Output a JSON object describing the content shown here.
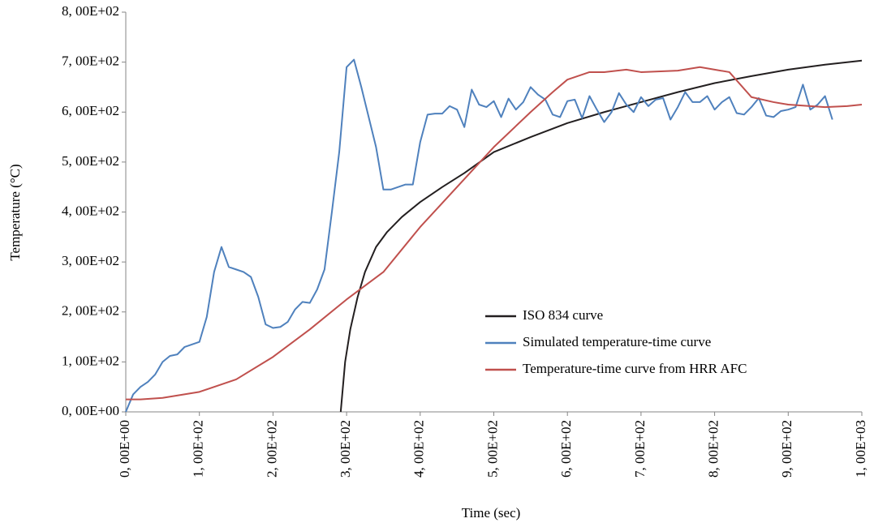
{
  "chart_data": {
    "type": "line",
    "xlabel": "Time (sec)",
    "ylabel": "Temperature (°C)",
    "xlim": [
      0,
      1000
    ],
    "ylim": [
      0,
      800
    ],
    "xticks": [
      {
        "value": 0,
        "label": "0, 00E+00"
      },
      {
        "value": 100,
        "label": "1, 00E+02"
      },
      {
        "value": 200,
        "label": "2, 00E+02"
      },
      {
        "value": 300,
        "label": "3, 00E+02"
      },
      {
        "value": 400,
        "label": "4, 00E+02"
      },
      {
        "value": 500,
        "label": "5, 00E+02"
      },
      {
        "value": 600,
        "label": "6, 00E+02"
      },
      {
        "value": 700,
        "label": "7, 00E+02"
      },
      {
        "value": 800,
        "label": "8, 00E+02"
      },
      {
        "value": 900,
        "label": "9, 00E+02"
      },
      {
        "value": 1000,
        "label": "1, 00E+03"
      }
    ],
    "yticks": [
      {
        "value": 0,
        "label": "0, 00E+00"
      },
      {
        "value": 100,
        "label": "1, 00E+02"
      },
      {
        "value": 200,
        "label": "2, 00E+02"
      },
      {
        "value": 300,
        "label": "3, 00E+02"
      },
      {
        "value": 400,
        "label": "4, 00E+02"
      },
      {
        "value": 500,
        "label": "5, 00E+02"
      },
      {
        "value": 600,
        "label": "6, 00E+02"
      },
      {
        "value": 700,
        "label": "7, 00E+02"
      },
      {
        "value": 800,
        "label": "8, 00E+02"
      }
    ],
    "grid": false,
    "legend": "center right",
    "series": [
      {
        "name": "ISO 834 curve",
        "color": "#231f20",
        "x": [
          292,
          298,
          305,
          315,
          325,
          340,
          355,
          375,
          400,
          430,
          460,
          500,
          550,
          600,
          650,
          700,
          750,
          800,
          850,
          900,
          950,
          1000
        ],
        "values": [
          0,
          100,
          165,
          230,
          280,
          330,
          360,
          390,
          420,
          450,
          478,
          520,
          550,
          578,
          600,
          620,
          640,
          658,
          672,
          685,
          695,
          703
        ]
      },
      {
        "name": "Simulated temperature-time curve",
        "color": "#4f81bd",
        "x": [
          0,
          10,
          20,
          30,
          40,
          50,
          60,
          70,
          80,
          90,
          100,
          110,
          120,
          130,
          140,
          150,
          160,
          170,
          180,
          190,
          200,
          210,
          220,
          230,
          240,
          250,
          260,
          270,
          280,
          290,
          300,
          310,
          320,
          330,
          340,
          350,
          360,
          370,
          380,
          390,
          400,
          410,
          420,
          430,
          440,
          450,
          460,
          470,
          480,
          490,
          500,
          510,
          520,
          530,
          540,
          550,
          560,
          570,
          580,
          590,
          600,
          610,
          620,
          630,
          640,
          650,
          660,
          670,
          680,
          690,
          700,
          710,
          720,
          730,
          740,
          750,
          760,
          770,
          780,
          790,
          800,
          810,
          820,
          830,
          840,
          850,
          860,
          870,
          880,
          890,
          900,
          910,
          920,
          930,
          940,
          950,
          960
        ],
        "values": [
          0,
          35,
          50,
          60,
          75,
          100,
          112,
          115,
          130,
          135,
          140,
          190,
          280,
          330,
          290,
          285,
          280,
          270,
          230,
          175,
          168,
          170,
          180,
          205,
          220,
          218,
          245,
          285,
          400,
          520,
          690,
          705,
          650,
          590,
          530,
          445,
          445,
          450,
          455,
          455,
          540,
          595,
          597,
          597,
          612,
          605,
          570,
          645,
          615,
          610,
          622,
          590,
          627,
          605,
          620,
          650,
          635,
          625,
          595,
          590,
          622,
          625,
          588,
          632,
          605,
          580,
          600,
          638,
          615,
          600,
          630,
          612,
          625,
          628,
          585,
          610,
          640,
          620,
          620,
          632,
          605,
          620,
          630,
          598,
          595,
          610,
          628,
          593,
          590,
          602,
          605,
          610,
          655,
          605,
          615,
          632,
          585
        ]
      },
      {
        "name": "Temperature-time curve from HRR AFC",
        "color": "#c0504d",
        "x": [
          0,
          20,
          50,
          100,
          150,
          200,
          250,
          300,
          350,
          400,
          450,
          500,
          550,
          580,
          600,
          630,
          650,
          680,
          700,
          750,
          780,
          800,
          820,
          850,
          880,
          900,
          950,
          980,
          1000
        ],
        "values": [
          25,
          25,
          28,
          40,
          65,
          110,
          165,
          225,
          280,
          370,
          450,
          530,
          600,
          640,
          665,
          680,
          680,
          685,
          680,
          683,
          690,
          685,
          680,
          630,
          620,
          615,
          610,
          612,
          615
        ]
      }
    ]
  }
}
